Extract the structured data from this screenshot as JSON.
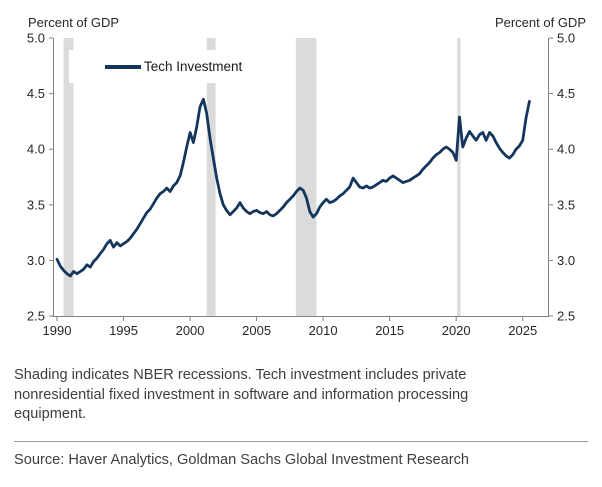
{
  "header": {
    "left_axis_title": "Percent of GDP",
    "right_axis_title": "Percent of GDP"
  },
  "legend": {
    "label": "Tech Investment"
  },
  "colors": {
    "line": "#14365d",
    "recession_band": "#dbdbdb",
    "axis": "#7f7f7f",
    "tick_label": "#26272e",
    "body_text": "#3e3e3e"
  },
  "footnote": "Shading indicates NBER recessions. Tech investment includes private nonresidential fixed investment in software and information processing equipment.",
  "source": "Source: Haver Analytics, Goldman Sachs Global Investment Research",
  "chart_data": {
    "type": "line",
    "title": "",
    "xlabel": "",
    "ylabel_left": "Percent of GDP",
    "ylabel_right": "Percent of GDP",
    "xlim": [
      1989.7,
      2026.9
    ],
    "ylim": [
      2.5,
      5.0
    ],
    "grid": false,
    "legend_position": "top-left-inside",
    "x_ticks": [
      1990,
      1995,
      2000,
      2005,
      2010,
      2015,
      2020,
      2025
    ],
    "x_tick_labels": [
      "1990",
      "1995",
      "2000",
      "2005",
      "2010",
      "2015",
      "2020",
      "2025"
    ],
    "y_ticks": [
      2.5,
      3.0,
      3.5,
      4.0,
      4.5,
      5.0
    ],
    "y_tick_labels": [
      "2.5",
      "3.0",
      "3.5",
      "4.0",
      "4.5",
      "5.0"
    ],
    "recessions": [
      [
        1990.5,
        1991.25
      ],
      [
        2001.25,
        2001.92
      ],
      [
        2007.95,
        2009.5
      ],
      [
        2020.08,
        2020.33
      ]
    ],
    "series": [
      {
        "name": "Tech Investment",
        "x_start": 1990.0,
        "x_step": 0.25,
        "values": [
          3.01,
          2.95,
          2.91,
          2.88,
          2.86,
          2.9,
          2.88,
          2.9,
          2.92,
          2.96,
          2.94,
          2.99,
          3.02,
          3.06,
          3.1,
          3.15,
          3.18,
          3.12,
          3.16,
          3.13,
          3.15,
          3.17,
          3.2,
          3.24,
          3.28,
          3.33,
          3.38,
          3.43,
          3.46,
          3.51,
          3.56,
          3.6,
          3.62,
          3.65,
          3.62,
          3.67,
          3.7,
          3.76,
          3.88,
          4.02,
          4.15,
          4.06,
          4.2,
          4.38,
          4.45,
          4.32,
          4.1,
          3.92,
          3.74,
          3.6,
          3.5,
          3.45,
          3.41,
          3.44,
          3.47,
          3.52,
          3.47,
          3.44,
          3.42,
          3.44,
          3.45,
          3.43,
          3.42,
          3.44,
          3.41,
          3.4,
          3.42,
          3.45,
          3.48,
          3.52,
          3.55,
          3.58,
          3.62,
          3.65,
          3.63,
          3.56,
          3.44,
          3.39,
          3.42,
          3.48,
          3.52,
          3.55,
          3.52,
          3.53,
          3.55,
          3.58,
          3.6,
          3.63,
          3.66,
          3.74,
          3.7,
          3.66,
          3.65,
          3.67,
          3.65,
          3.66,
          3.68,
          3.7,
          3.72,
          3.71,
          3.74,
          3.76,
          3.74,
          3.72,
          3.7,
          3.71,
          3.72,
          3.74,
          3.76,
          3.78,
          3.82,
          3.85,
          3.88,
          3.92,
          3.95,
          3.97,
          4.0,
          4.02,
          4.0,
          3.97,
          3.9,
          4.29,
          4.02,
          4.1,
          4.16,
          4.12,
          4.08,
          4.13,
          4.15,
          4.08,
          4.15,
          4.12,
          4.06,
          4.01,
          3.97,
          3.94,
          3.92,
          3.95,
          4.0,
          4.03,
          4.08,
          4.28,
          4.43
        ]
      }
    ]
  }
}
